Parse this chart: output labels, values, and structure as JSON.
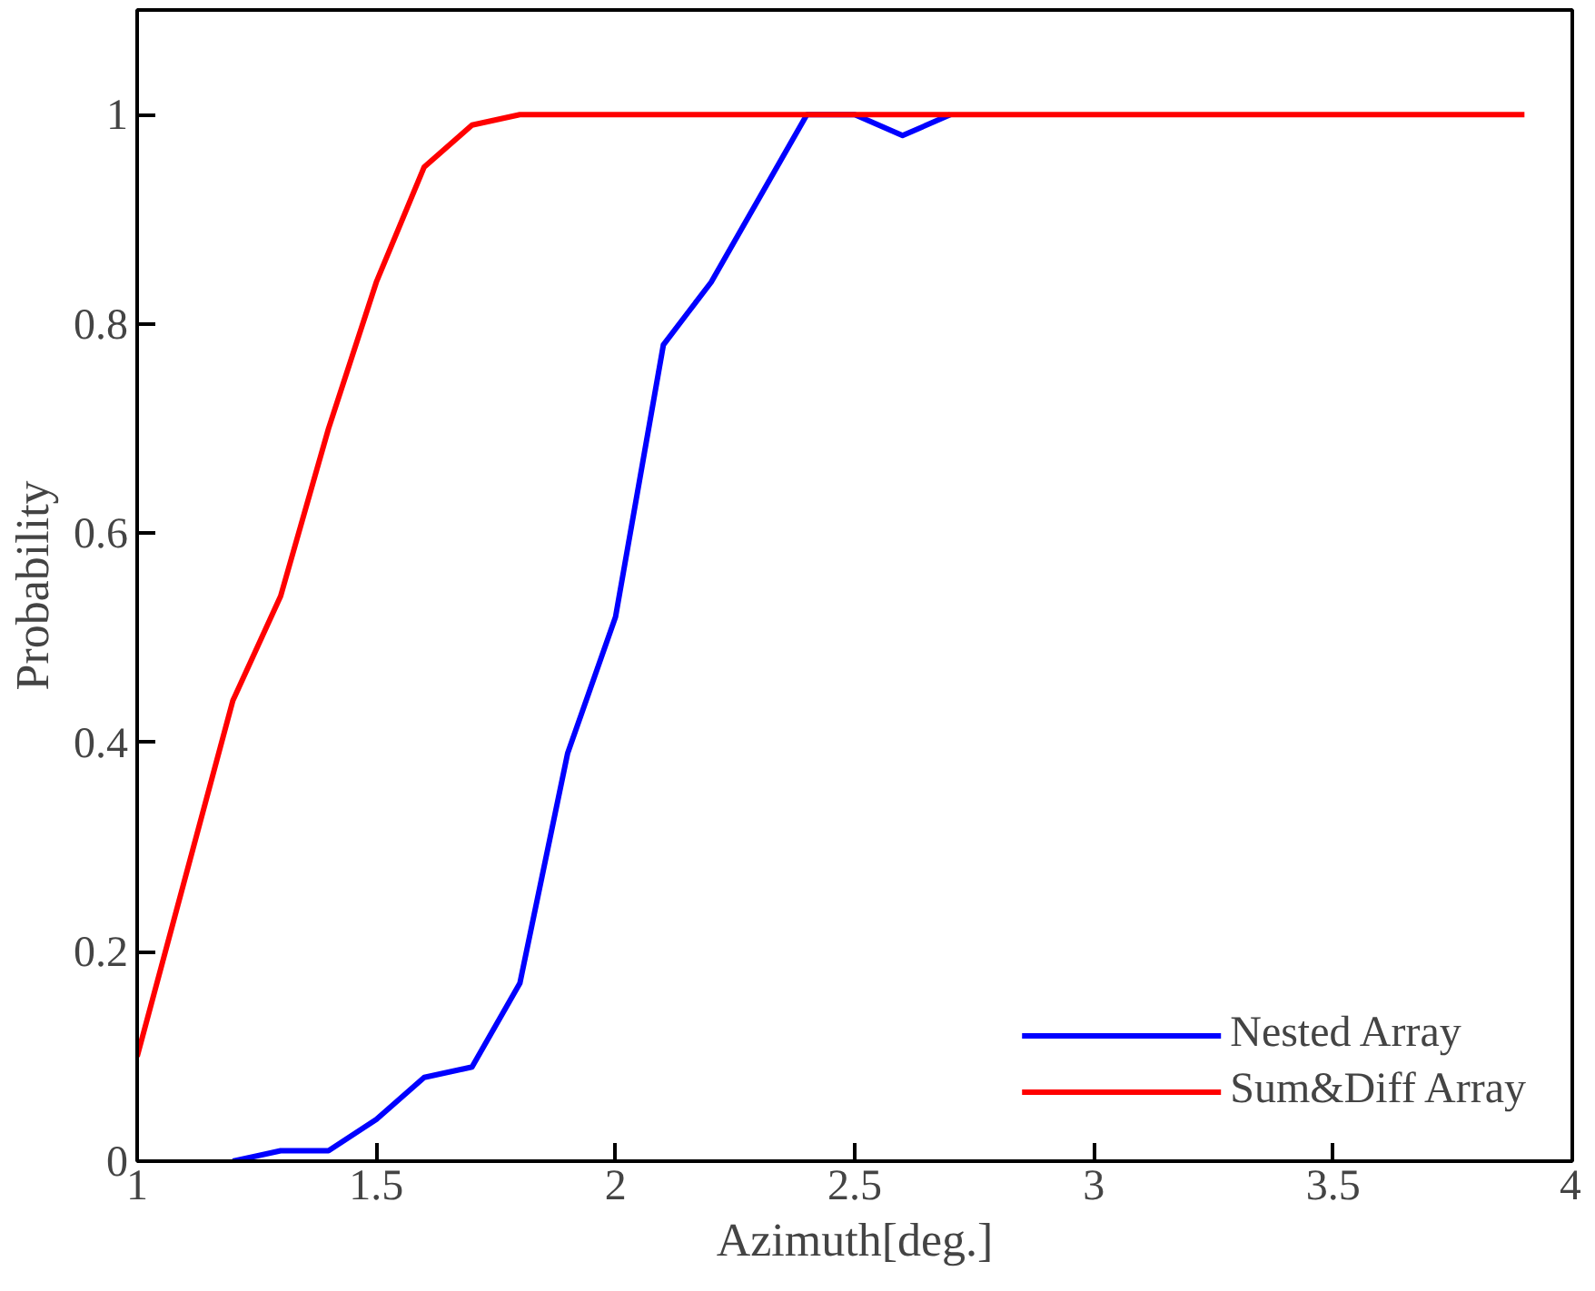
{
  "chart_data": {
    "type": "line",
    "xlabel": "Azimuth[deg.]",
    "ylabel": "Probability",
    "xlim": [
      1,
      4
    ],
    "ylim": [
      0,
      1.1
    ],
    "xticks": [
      1,
      1.5,
      2,
      2.5,
      3,
      3.5,
      4
    ],
    "yticks": [
      0,
      0.2,
      0.4,
      0.6,
      0.8,
      1
    ],
    "grid": false,
    "legend": "bottom right",
    "marker": "none",
    "line_style": "solid",
    "series": [
      {
        "name": "Nested Array",
        "color": "#0000ff",
        "x": [
          1.2,
          1.3,
          1.4,
          1.5,
          1.6,
          1.7,
          1.8,
          1.9,
          2.0,
          2.1,
          2.2,
          2.3,
          2.4,
          2.5,
          2.6,
          2.7
        ],
        "values": [
          0,
          0.01,
          0.01,
          0.04,
          0.08,
          0.09,
          0.17,
          0.39,
          0.52,
          0.78,
          0.84,
          0.92,
          1,
          1,
          0.98,
          1
        ]
      },
      {
        "name": "Sum&Diff Array",
        "color": "#ff0000",
        "x": [
          1.0,
          1.1,
          1.2,
          1.3,
          1.4,
          1.5,
          1.6,
          1.7,
          1.8,
          1.9,
          2.0,
          2.1,
          2.2,
          2.3,
          2.4,
          2.5,
          2.6,
          2.7,
          2.8,
          2.9,
          3.0,
          3.1,
          3.2,
          3.3,
          3.4,
          3.5,
          3.6,
          3.7,
          3.8,
          3.9
        ],
        "values": [
          0.1,
          0.27,
          0.44,
          0.54,
          0.7,
          0.84,
          0.95,
          0.99,
          1,
          1,
          1,
          1,
          1,
          1,
          1,
          1,
          1,
          1,
          1,
          1,
          1,
          1,
          1,
          1,
          1,
          1,
          1,
          1,
          1,
          1
        ]
      }
    ]
  }
}
